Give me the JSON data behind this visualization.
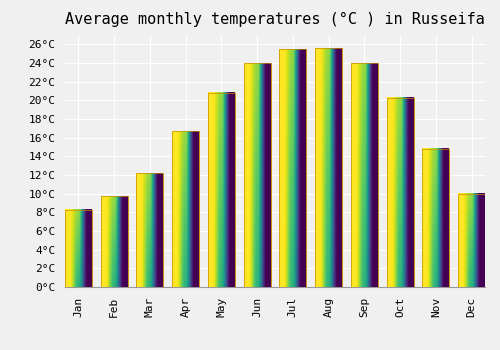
{
  "title": "Average monthly temperatures (°C ) in Russeifa",
  "months": [
    "Jan",
    "Feb",
    "Mar",
    "Apr",
    "May",
    "Jun",
    "Jul",
    "Aug",
    "Sep",
    "Oct",
    "Nov",
    "Dec"
  ],
  "values": [
    8.3,
    9.7,
    12.2,
    16.7,
    20.8,
    24.0,
    25.5,
    25.6,
    24.0,
    20.3,
    14.8,
    10.0
  ],
  "bar_color_bottom": "#FFA500",
  "bar_color_top": "#FFD700",
  "bar_edge_color": "#CC8800",
  "ylim": [
    0,
    27
  ],
  "ytick_step": 2,
  "background_color": "#f0f0f0",
  "grid_color": "#ffffff",
  "title_fontsize": 11,
  "tick_fontsize": 8,
  "font_family": "monospace",
  "bar_width": 0.75
}
